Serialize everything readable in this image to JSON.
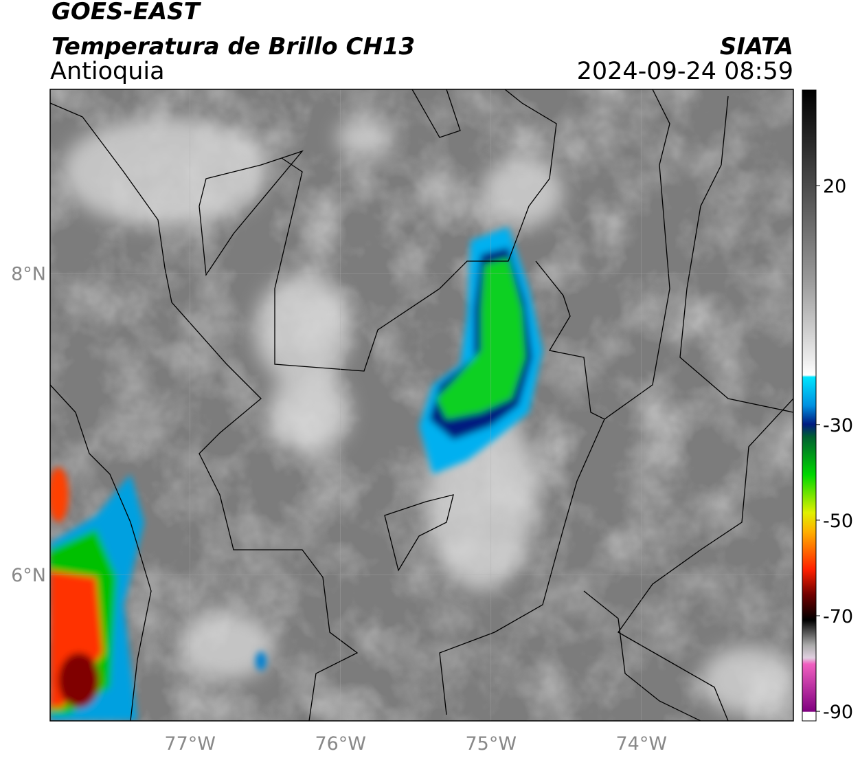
{
  "header": {
    "title": "GOES-EAST",
    "subtitle": "Temperatura de Brillo CH13",
    "region": "Antioquia",
    "source": "SIATA",
    "timestamp": "2024-09-24 08:59"
  },
  "map": {
    "xlim": [
      -77.93,
      -72.99
    ],
    "ylim": [
      5.03,
      9.22
    ],
    "xticks": [
      {
        "value": -77,
        "label": "77°W"
      },
      {
        "value": -76,
        "label": "76°W"
      },
      {
        "value": -75,
        "label": "75°W"
      },
      {
        "value": -74,
        "label": "74°W"
      }
    ],
    "yticks": [
      {
        "value": 8,
        "label": "8°N"
      },
      {
        "value": 6,
        "label": "6°N"
      }
    ],
    "grid": true
  },
  "colorbar": {
    "lim": [
      -92,
      40
    ],
    "ticks": [
      20,
      -30,
      -50,
      -70,
      -90
    ]
  }
}
